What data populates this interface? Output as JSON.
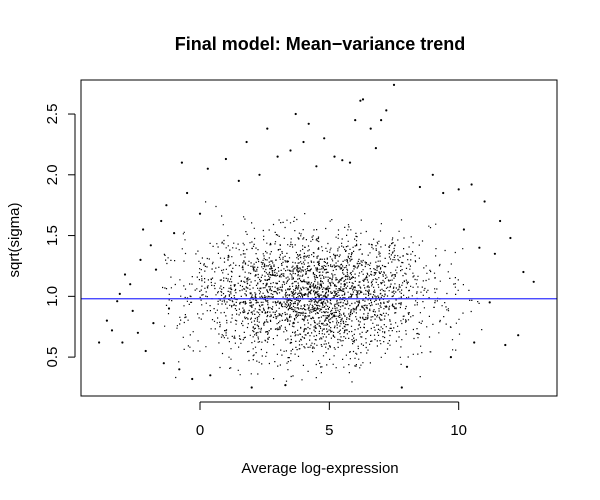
{
  "chart_data": {
    "type": "scatter",
    "title": "Final model: Mean−variance trend",
    "xlabel": "Average log-expression",
    "ylabel": "sqrt(sigma)",
    "xlim": [
      -4.6,
      13.8
    ],
    "ylim": [
      0.18,
      2.78
    ],
    "x_ticks": [
      0,
      5,
      10
    ],
    "x_tick_labels": [
      "0",
      "5",
      "10"
    ],
    "y_ticks": [
      0.5,
      1.0,
      1.5,
      2.0,
      2.5
    ],
    "y_tick_labels": [
      "0.5",
      "1.0",
      "1.5",
      "2.0",
      "2.5"
    ],
    "grid": false,
    "legend": "none",
    "point_color": "#000000",
    "trend_line": {
      "y": 0.98,
      "color": "#3333ff"
    },
    "series": [
      {
        "points": [
          [
            -3.9,
            0.62
          ],
          [
            -3.6,
            0.8
          ],
          [
            -3.4,
            0.72
          ],
          [
            -3.2,
            0.96
          ],
          [
            -3.1,
            1.02
          ],
          [
            -3.0,
            0.62
          ],
          [
            -2.9,
            1.18
          ],
          [
            -2.7,
            1.1
          ],
          [
            -2.6,
            0.88
          ],
          [
            -2.4,
            0.7
          ],
          [
            -2.3,
            1.3
          ],
          [
            -2.2,
            1.55
          ],
          [
            -2.1,
            0.55
          ],
          [
            -1.9,
            1.42
          ],
          [
            -1.8,
            0.78
          ],
          [
            -1.7,
            1.22
          ],
          [
            -1.5,
            1.62
          ],
          [
            -1.4,
            0.45
          ],
          [
            -1.3,
            1.75
          ],
          [
            -1.2,
            0.9
          ],
          [
            -1.0,
            1.52
          ],
          [
            -0.8,
            0.4
          ],
          [
            -0.7,
            2.1
          ],
          [
            -0.5,
            1.85
          ],
          [
            -0.3,
            0.32
          ],
          [
            0.0,
            1.68
          ],
          [
            0.3,
            2.05
          ],
          [
            0.4,
            0.35
          ],
          [
            1.0,
            2.13
          ],
          [
            1.5,
            1.95
          ],
          [
            1.8,
            2.27
          ],
          [
            2.0,
            0.25
          ],
          [
            2.3,
            2.0
          ],
          [
            2.6,
            2.38
          ],
          [
            3.0,
            2.15
          ],
          [
            3.3,
            0.27
          ],
          [
            3.5,
            2.2
          ],
          [
            3.7,
            2.5
          ],
          [
            4.0,
            2.27
          ],
          [
            4.2,
            2.42
          ],
          [
            4.5,
            2.07
          ],
          [
            4.8,
            2.3
          ],
          [
            5.2,
            2.15
          ],
          [
            5.5,
            2.12
          ],
          [
            5.8,
            2.1
          ],
          [
            6.0,
            2.45
          ],
          [
            6.2,
            2.61
          ],
          [
            6.3,
            2.62
          ],
          [
            6.6,
            2.38
          ],
          [
            6.8,
            2.22
          ],
          [
            7.0,
            2.45
          ],
          [
            7.2,
            2.53
          ],
          [
            7.5,
            2.74
          ],
          [
            7.8,
            0.25
          ],
          [
            8.0,
            0.42
          ],
          [
            8.5,
            1.9
          ],
          [
            9.0,
            2.0
          ],
          [
            9.4,
            1.85
          ],
          [
            9.7,
            0.5
          ],
          [
            10.0,
            1.88
          ],
          [
            10.2,
            1.55
          ],
          [
            10.5,
            1.92
          ],
          [
            10.6,
            0.62
          ],
          [
            10.8,
            1.4
          ],
          [
            11.0,
            1.78
          ],
          [
            11.2,
            0.95
          ],
          [
            11.4,
            1.35
          ],
          [
            11.6,
            1.62
          ],
          [
            11.8,
            0.6
          ],
          [
            12.0,
            1.48
          ],
          [
            12.3,
            0.68
          ],
          [
            12.5,
            1.2
          ],
          [
            12.9,
            1.12
          ]
        ]
      }
    ]
  }
}
